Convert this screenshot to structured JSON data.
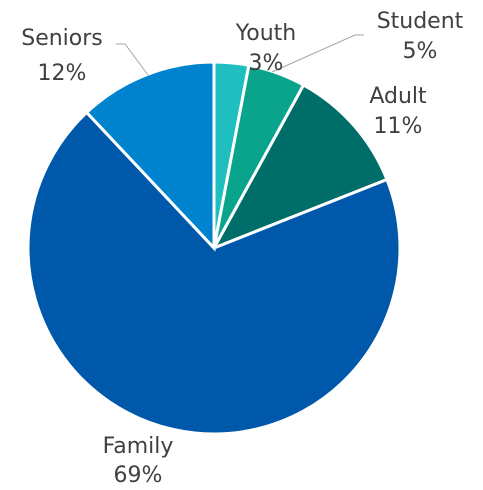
{
  "chart_data": {
    "type": "pie",
    "title": "",
    "start_angle_deg": 0,
    "direction": "clockwise",
    "legend": "none",
    "slices": [
      {
        "label": "Youth",
        "value": 3,
        "value_label": "3%",
        "color": "#1fbfbf"
      },
      {
        "label": "Student",
        "value": 5,
        "value_label": "5%",
        "color": "#0aa38c"
      },
      {
        "label": "Adult",
        "value": 11,
        "value_label": "11%",
        "color": "#006e68"
      },
      {
        "label": "Family",
        "value": 69,
        "value_label": "69%",
        "color": "#0058ab"
      },
      {
        "label": "Seniors",
        "value": 12,
        "value_label": "12%",
        "color": "#0083cf"
      }
    ]
  }
}
